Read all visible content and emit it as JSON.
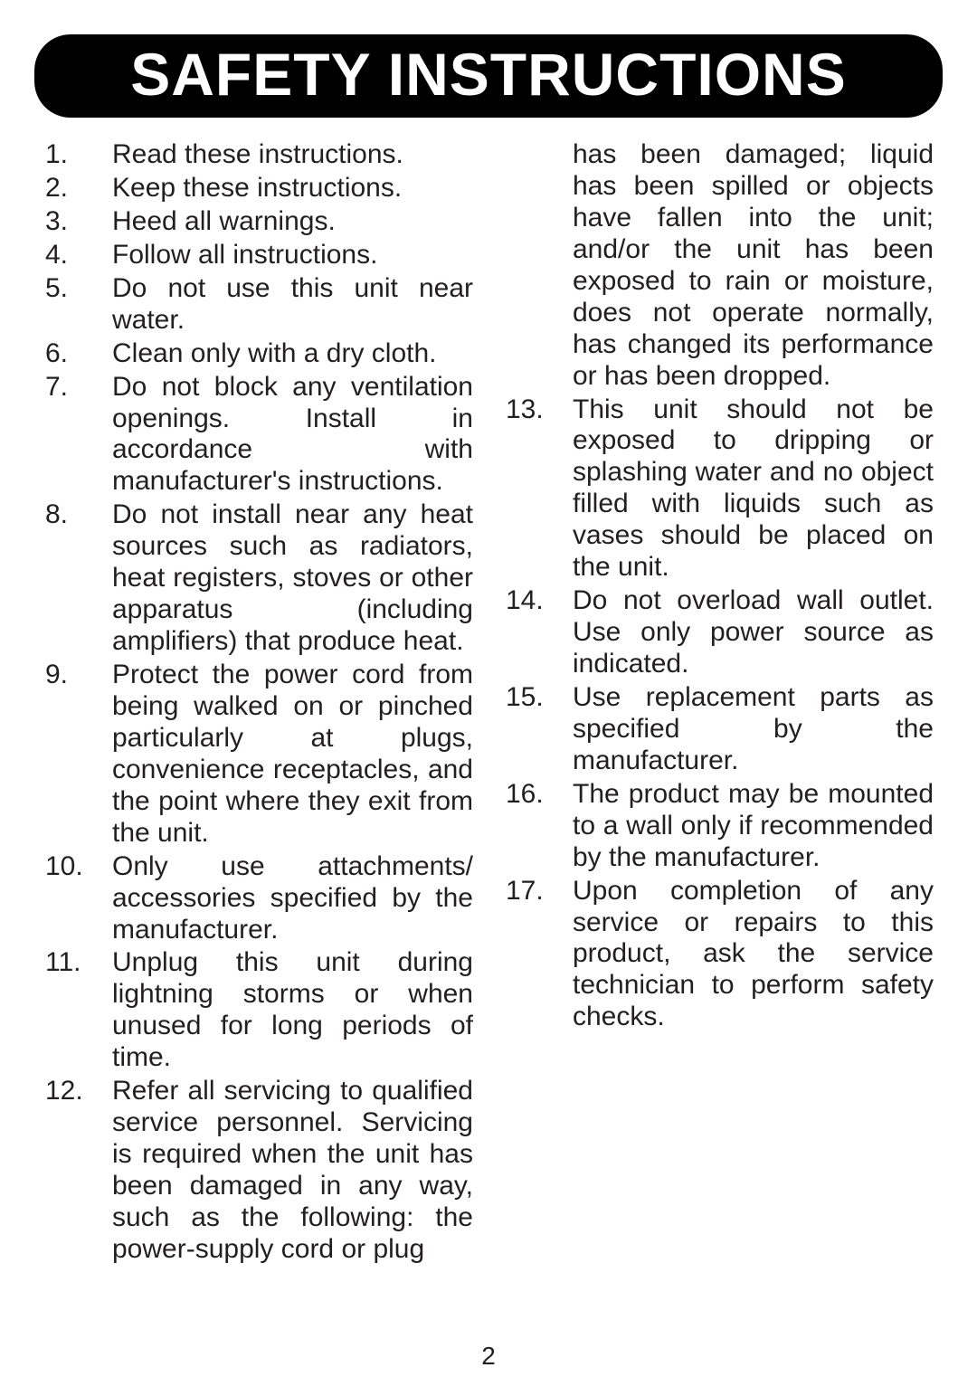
{
  "title": "SAFETY INSTRUCTIONS",
  "pageNumber": "2",
  "colors": {
    "titleBg": "#000000",
    "titleText": "#ffffff",
    "bodyText": "#231f20",
    "pageBg": "#ffffff"
  },
  "typography": {
    "titleFontSize": 66,
    "bodyFontSize": 30,
    "fontFamily": "Arial"
  },
  "leftColumn": {
    "continuation": null,
    "items": [
      {
        "n": "1.",
        "text": "Read these instructions.",
        "justify": false
      },
      {
        "n": "2.",
        "text": "Keep these instructions.",
        "justify": false
      },
      {
        "n": "3.",
        "text": "Heed all warnings.",
        "justify": false
      },
      {
        "n": "4.",
        "text": "Follow all instructions.",
        "justify": false
      },
      {
        "n": "5.",
        "text": "Do not use this unit near water.",
        "justify": true
      },
      {
        "n": "6.",
        "text": "Clean only with a dry cloth.",
        "justify": false
      },
      {
        "n": "7.",
        "text": "Do not block any ventilation openings. Install in accordance with manufacturer's instructions.",
        "justify": true
      },
      {
        "n": "8.",
        "text": "Do not install near any heat sources such as radiators, heat registers, stoves or other apparatus (including amplifiers) that produce heat.",
        "justify": true
      },
      {
        "n": "9.",
        "text": "Protect the power cord from being walked on or pinched particularly at plugs, convenience receptacles, and the point where they exit from the unit.",
        "justify": true
      },
      {
        "n": "10.",
        "text": "Only use attachments/ accessories specified by the manufacturer.",
        "justify": true
      },
      {
        "n": "11.",
        "text": "Unplug this unit during lightning storms or when unused for long periods of time.",
        "justify": true
      },
      {
        "n": "12.",
        "text": "Refer all servicing to qualified service personnel. Servicing is required when the unit has been damaged in any way, such as the following: the power-supply cord or plug",
        "justify": true
      }
    ]
  },
  "rightColumn": {
    "continuation": "has been damaged; liquid has been spilled or objects have fallen into the unit; and/or the unit has been exposed to rain or moisture, does not operate normally, has changed its performance or has been dropped.",
    "items": [
      {
        "n": "13.",
        "text": "This unit should not be exposed to dripping or splashing water and no object filled with liquids such as vases should be placed on the unit.",
        "justify": true
      },
      {
        "n": "14.",
        "text": "Do not overload wall outlet. Use only power source as indicated.",
        "justify": true
      },
      {
        "n": "15.",
        "text": "Use replacement parts as specified by the manufacturer.",
        "justify": true
      },
      {
        "n": "16.",
        "text": "The product may be mounted to a wall only if recommended by the manufacturer.",
        "justify": true
      },
      {
        "n": "17.",
        "text": "Upon completion of any service or repairs to this product, ask the service technician to perform safety checks.",
        "justify": true
      }
    ]
  }
}
